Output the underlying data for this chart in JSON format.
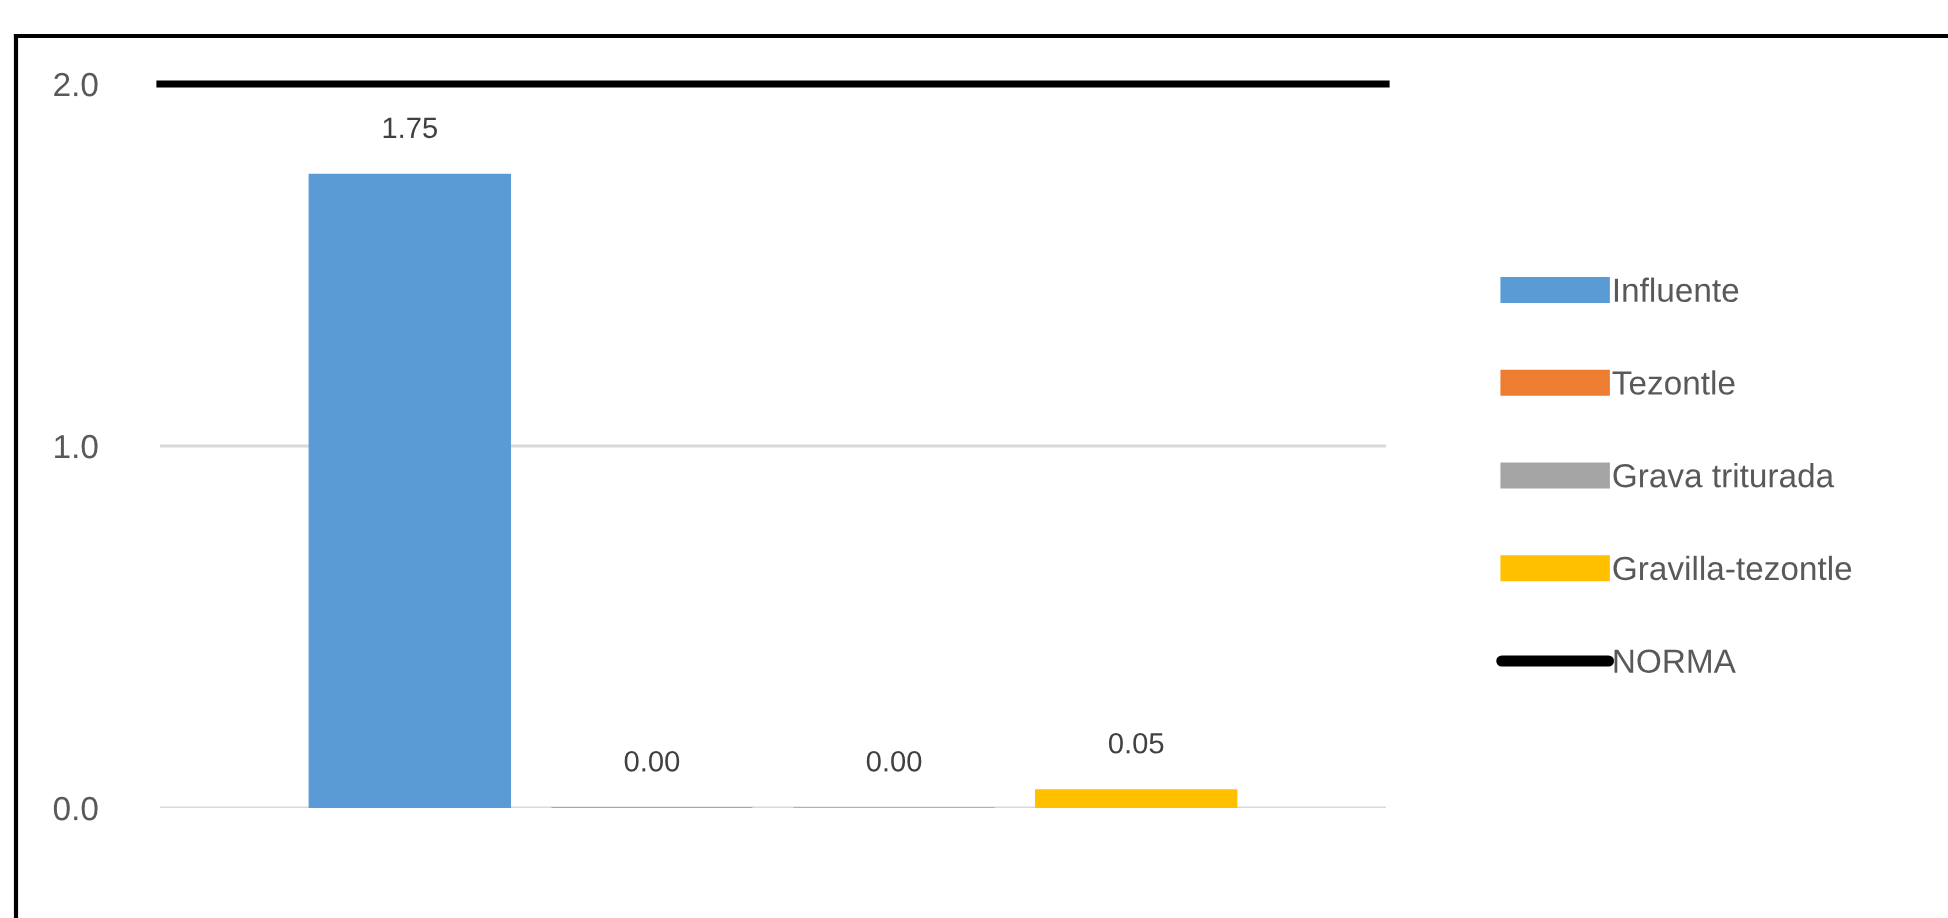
{
  "chart_data": {
    "type": "bar",
    "categories": [
      null
    ],
    "series": [
      {
        "name": "Influente",
        "color": "#5b9bd5",
        "values": [
          1.75
        ],
        "value_labels": [
          "1.75"
        ]
      },
      {
        "name": "Tezontle",
        "color": "#ed7d31",
        "values": [
          0.0
        ],
        "value_labels": [
          "0.00"
        ]
      },
      {
        "name": "Grava triturada",
        "color": "#a5a5a5",
        "values": [
          0.0
        ],
        "value_labels": [
          "0.00"
        ]
      },
      {
        "name": "Gravilla-tezontle",
        "color": "#ffc000",
        "values": [
          0.05
        ],
        "value_labels": [
          "0.05"
        ]
      }
    ],
    "ylim": [
      0,
      2.0
    ],
    "yticks": [
      {
        "value": 0,
        "label": "0.0"
      },
      {
        "value": 1.0,
        "label": "1.0"
      },
      {
        "value": 2.0,
        "label": "2.0"
      }
    ],
    "grid": "y",
    "legend": "right",
    "ref_lines": [
      {
        "axis": "y",
        "value": 2.0,
        "label": "NORMA",
        "color": "#000000"
      }
    ]
  }
}
